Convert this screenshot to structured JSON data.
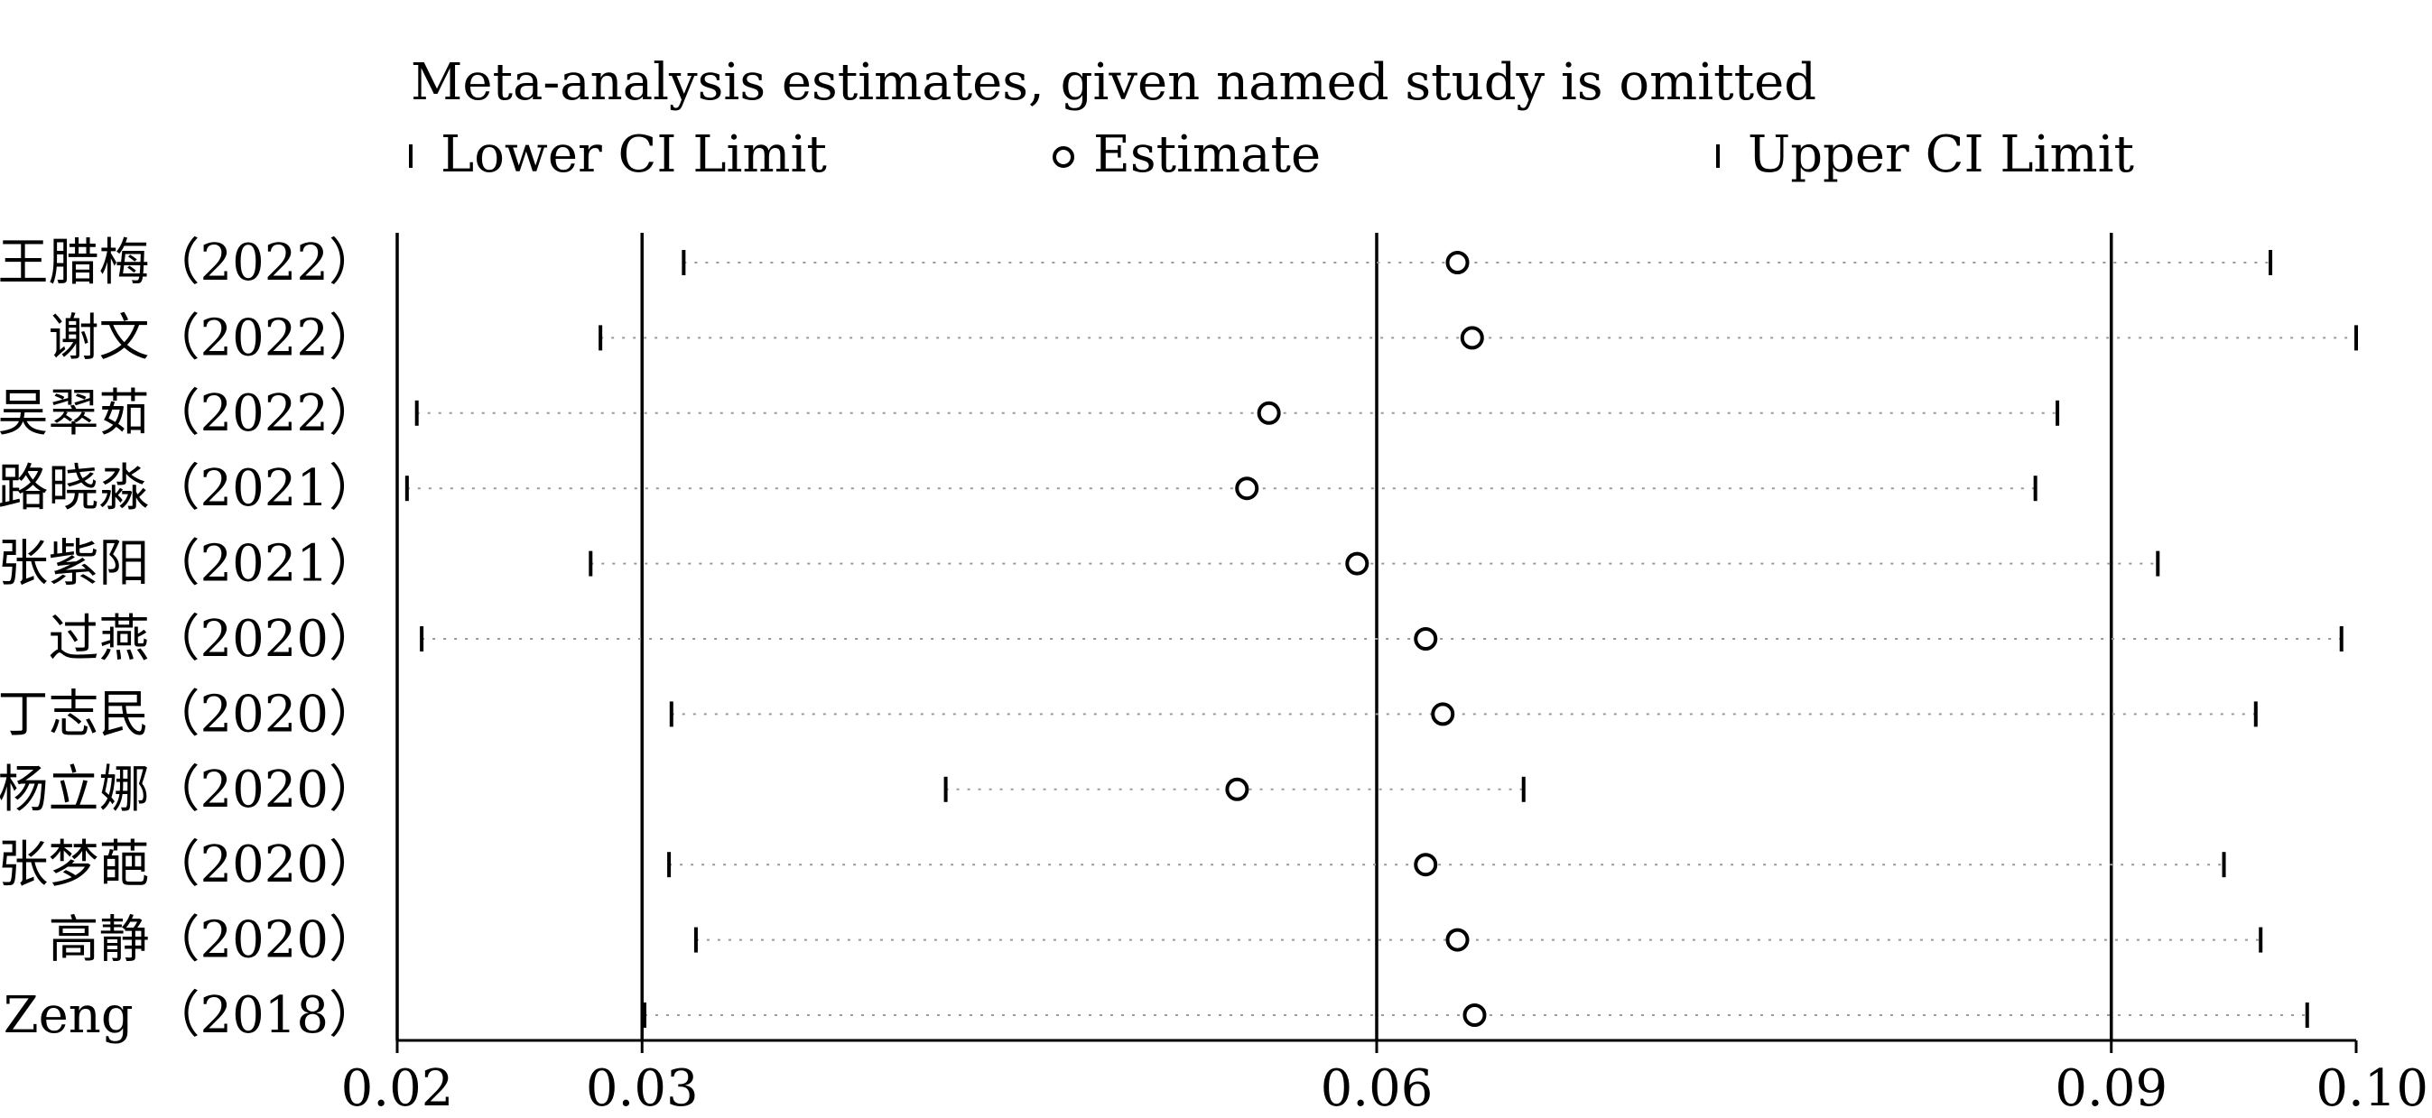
{
  "chart_data": {
    "type": "scatter",
    "subtype": "forest-plot-sensitivity",
    "title": "Meta-analysis estimates, given named study is omitted",
    "legend": {
      "placement": "top",
      "entries": [
        "Lower CI Limit",
        "Estimate",
        "Upper CI Limit"
      ]
    },
    "xlim": [
      0.02,
      0.1
    ],
    "x_ticks": [
      0.02,
      0.03,
      0.06,
      0.09,
      0.1
    ],
    "x_tick_labels": [
      "0.02",
      "0.03",
      "0.06",
      "0.09",
      "0.10"
    ],
    "reference_lines": [
      0.03,
      0.06,
      0.09
    ],
    "grid": false,
    "studies": [
      {
        "label": "王腊梅（2022）",
        "lower": 0.0317,
        "estimate": 0.0633,
        "upper": 0.0965
      },
      {
        "label": "谢文（2022）",
        "lower": 0.0283,
        "estimate": 0.0639,
        "upper": 0.1
      },
      {
        "label": "吴翠茹（2022）",
        "lower": 0.0208,
        "estimate": 0.0556,
        "upper": 0.0878
      },
      {
        "label": "路晓淼（2021）",
        "lower": 0.0204,
        "estimate": 0.0547,
        "upper": 0.0869
      },
      {
        "label": "张紫阳（2021）",
        "lower": 0.0279,
        "estimate": 0.0592,
        "upper": 0.0919
      },
      {
        "label": "过燕（2020）",
        "lower": 0.021,
        "estimate": 0.062,
        "upper": 0.0994
      },
      {
        "label": "丁志民（2020）",
        "lower": 0.0312,
        "estimate": 0.0627,
        "upper": 0.0959
      },
      {
        "label": "杨立娜（2020）",
        "lower": 0.0424,
        "estimate": 0.0543,
        "upper": 0.066
      },
      {
        "label": "张梦葩（2020）",
        "lower": 0.0311,
        "estimate": 0.062,
        "upper": 0.0946
      },
      {
        "label": "高静（2020）",
        "lower": 0.0322,
        "estimate": 0.0633,
        "upper": 0.0961
      },
      {
        "label": "Zeng （2018）",
        "lower": 0.0301,
        "estimate": 0.064,
        "upper": 0.098
      }
    ]
  }
}
